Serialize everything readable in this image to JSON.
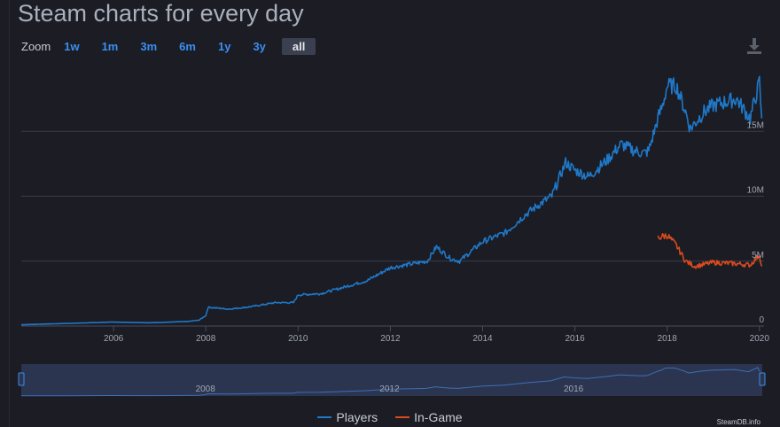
{
  "header": {
    "title": "Steam charts for every day"
  },
  "zoom": {
    "label": "Zoom",
    "options": [
      "1w",
      "1m",
      "3m",
      "6m",
      "1y",
      "3y",
      "all"
    ],
    "active": "all"
  },
  "toolbar": {
    "download_icon": "download-icon"
  },
  "colors": {
    "players": "#1f78c8",
    "in_game": "#d94a1e",
    "background": "#1b1c24",
    "grid": "#3a3d4a"
  },
  "chart_data": {
    "type": "line",
    "x_axis": {
      "range": [
        2004.0,
        2020.1
      ],
      "ticks": [
        "2006",
        "2008",
        "2010",
        "2012",
        "2014",
        "2016",
        "2018",
        "2020"
      ],
      "tick_values": [
        2006,
        2008,
        2010,
        2012,
        2014,
        2016,
        2018,
        2020
      ]
    },
    "y_axis": {
      "range": [
        0,
        20000000
      ],
      "ticks": [
        "0",
        "5M",
        "10M",
        "15M"
      ],
      "tick_values": [
        0,
        5000000,
        10000000,
        15000000
      ],
      "position": "right",
      "grid": true
    },
    "series": [
      {
        "name": "Players",
        "points": [
          [
            2004.0,
            100000
          ],
          [
            2004.5,
            150000
          ],
          [
            2005.0,
            200000
          ],
          [
            2005.5,
            250000
          ],
          [
            2005.9,
            300000
          ],
          [
            2006.8,
            250000
          ],
          [
            2007.2,
            300000
          ],
          [
            2007.6,
            350000
          ],
          [
            2007.85,
            450000
          ],
          [
            2008.0,
            800000
          ],
          [
            2008.05,
            1450000
          ],
          [
            2008.5,
            1300000
          ],
          [
            2009.0,
            1500000
          ],
          [
            2009.5,
            1800000
          ],
          [
            2009.9,
            1800000
          ],
          [
            2010.0,
            2400000
          ],
          [
            2010.5,
            2500000
          ],
          [
            2011.0,
            3000000
          ],
          [
            2011.5,
            3500000
          ],
          [
            2012.0,
            4500000
          ],
          [
            2012.5,
            4800000
          ],
          [
            2012.8,
            5000000
          ],
          [
            2013.0,
            6100000
          ],
          [
            2013.3,
            5200000
          ],
          [
            2013.5,
            5000000
          ],
          [
            2014.0,
            6500000
          ],
          [
            2014.5,
            7200000
          ],
          [
            2014.9,
            8500000
          ],
          [
            2015.2,
            9300000
          ],
          [
            2015.5,
            10000000
          ],
          [
            2015.8,
            12600000
          ],
          [
            2016.0,
            12000000
          ],
          [
            2016.3,
            11500000
          ],
          [
            2016.7,
            12800000
          ],
          [
            2017.0,
            14000000
          ],
          [
            2017.3,
            13500000
          ],
          [
            2017.5,
            13300000
          ],
          [
            2017.6,
            13500000
          ],
          [
            2017.8,
            16000000
          ],
          [
            2017.9,
            17000000
          ],
          [
            2018.0,
            18500000
          ],
          [
            2018.2,
            18500000
          ],
          [
            2018.4,
            16500000
          ],
          [
            2018.5,
            15200000
          ],
          [
            2018.8,
            16500000
          ],
          [
            2019.0,
            17000000
          ],
          [
            2019.5,
            17500000
          ],
          [
            2019.8,
            16000000
          ],
          [
            2020.0,
            18800000
          ],
          [
            2020.05,
            16000000
          ]
        ]
      },
      {
        "name": "In-Game",
        "points": [
          [
            2017.8,
            6800000
          ],
          [
            2018.0,
            7000000
          ],
          [
            2018.2,
            6200000
          ],
          [
            2018.4,
            5000000
          ],
          [
            2018.6,
            4600000
          ],
          [
            2019.0,
            4900000
          ],
          [
            2019.5,
            4800000
          ],
          [
            2019.8,
            4700000
          ],
          [
            2020.0,
            5500000
          ],
          [
            2020.05,
            4600000
          ]
        ]
      }
    ],
    "navigator": {
      "ticks": [
        "2008",
        "2012",
        "2016"
      ],
      "tick_values": [
        2008,
        2012,
        2016
      ]
    },
    "legend": {
      "placement": "bottom-center"
    }
  },
  "legend_items": [
    {
      "label": "Players"
    },
    {
      "label": "In-Game"
    }
  ],
  "credit": "SteamDB.info"
}
